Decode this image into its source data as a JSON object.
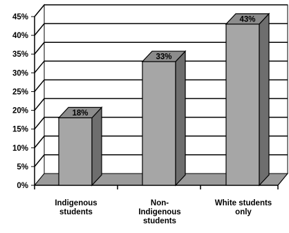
{
  "chart_data": {
    "type": "bar",
    "style": "3d",
    "categories": [
      "Indigenous students",
      "Non-Indigenous students",
      "White students only"
    ],
    "category_lines": [
      [
        "Indigenous",
        "students"
      ],
      [
        "Non-",
        "Indigenous",
        "students"
      ],
      [
        "White students",
        "only"
      ]
    ],
    "values": [
      18,
      33,
      43
    ],
    "data_labels": [
      "18%",
      "33%",
      "43%"
    ],
    "ylim": [
      0,
      45
    ],
    "yticks": [
      0,
      5,
      10,
      15,
      20,
      25,
      30,
      35,
      40,
      45
    ],
    "ytick_labels": [
      "0%",
      "5%",
      "10%",
      "15%",
      "20%",
      "25%",
      "30%",
      "35%",
      "40%",
      "45%"
    ],
    "grid": true,
    "title": "",
    "xlabel": "",
    "ylabel": "",
    "colors": {
      "bar_front": "#a6a6a6",
      "bar_side": "#6e6e6e",
      "bar_top": "#8c8c8c",
      "floor": "#9a9a9a",
      "wall": "#ffffff",
      "grid": "#000000"
    }
  }
}
